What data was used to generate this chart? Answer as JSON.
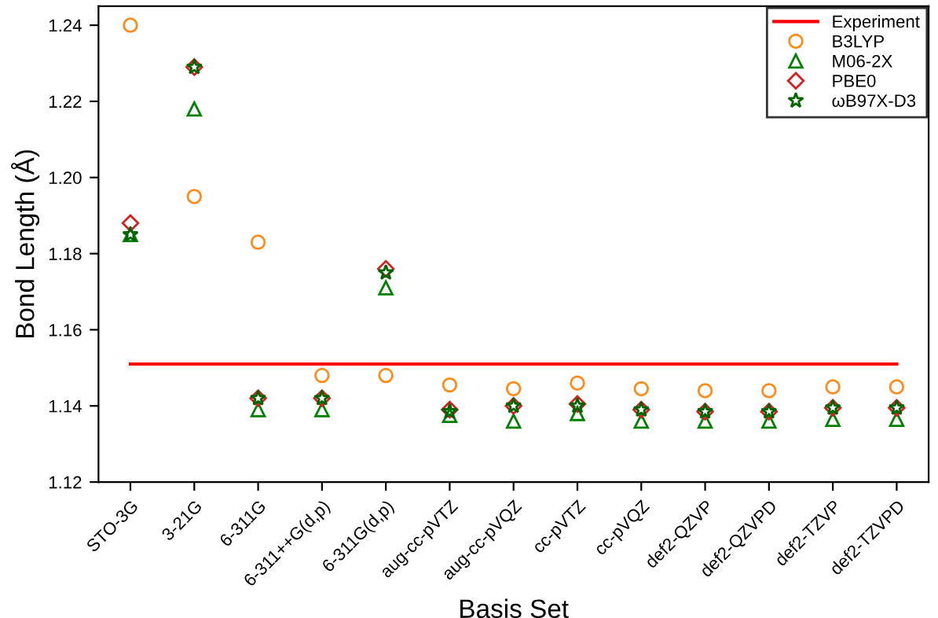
{
  "chart_data": {
    "type": "scatter",
    "xlabel": "Basis Set",
    "ylabel": "Bond Length (Å)",
    "categories": [
      "STO-3G",
      "3-21G",
      "6-311G",
      "6-311++G(d,p)",
      "6-311G(d,p)",
      "aug-cc-pVTZ",
      "aug-cc-pVQZ",
      "cc-pVTZ",
      "cc-pVQZ",
      "def2-QZVP",
      "def2-QZVPD",
      "def2-TZVP",
      "def2-TZVPD"
    ],
    "series": [
      {
        "name": "Experiment",
        "type": "line",
        "color": "#ff0000",
        "marker": "none",
        "values": [
          1.151,
          1.151,
          1.151,
          1.151,
          1.151,
          1.151,
          1.151,
          1.151,
          1.151,
          1.151,
          1.151,
          1.151,
          1.151
        ]
      },
      {
        "name": "B3LYP",
        "color": "#ff8c1a",
        "marker": "circle",
        "values": [
          1.24,
          1.195,
          1.183,
          1.148,
          1.148,
          1.1455,
          1.1445,
          1.146,
          1.1445,
          1.144,
          1.144,
          1.145,
          1.145
        ]
      },
      {
        "name": "M06-2X",
        "color": "#008000",
        "marker": "triangle",
        "values": [
          1.185,
          1.218,
          1.139,
          1.139,
          1.171,
          1.1375,
          1.136,
          1.138,
          1.136,
          1.136,
          1.136,
          1.1365,
          1.1365
        ]
      },
      {
        "name": "PBE0",
        "color": "#d62020",
        "marker": "diamond",
        "values": [
          1.188,
          1.229,
          1.142,
          1.142,
          1.176,
          1.139,
          1.14,
          1.1405,
          1.139,
          1.1385,
          1.1385,
          1.1395,
          1.1395
        ]
      },
      {
        "name": "ωB97X-D3",
        "color": "#006400",
        "marker": "star",
        "values": [
          1.185,
          1.229,
          1.142,
          1.142,
          1.175,
          1.1385,
          1.14,
          1.14,
          1.139,
          1.1385,
          1.1385,
          1.1395,
          1.1395
        ]
      }
    ],
    "ylim": [
      1.12,
      1.245
    ],
    "yticks": [
      {
        "value": 1.12,
        "label": "1.12"
      },
      {
        "value": 1.14,
        "label": "1.14"
      },
      {
        "value": 1.16,
        "label": "1.16"
      },
      {
        "value": 1.18,
        "label": "1.18"
      },
      {
        "value": 1.2,
        "label": "1.20"
      },
      {
        "value": 1.22,
        "label": "1.22"
      },
      {
        "value": 1.24,
        "label": "1.24"
      }
    ],
    "legend": "top right"
  }
}
